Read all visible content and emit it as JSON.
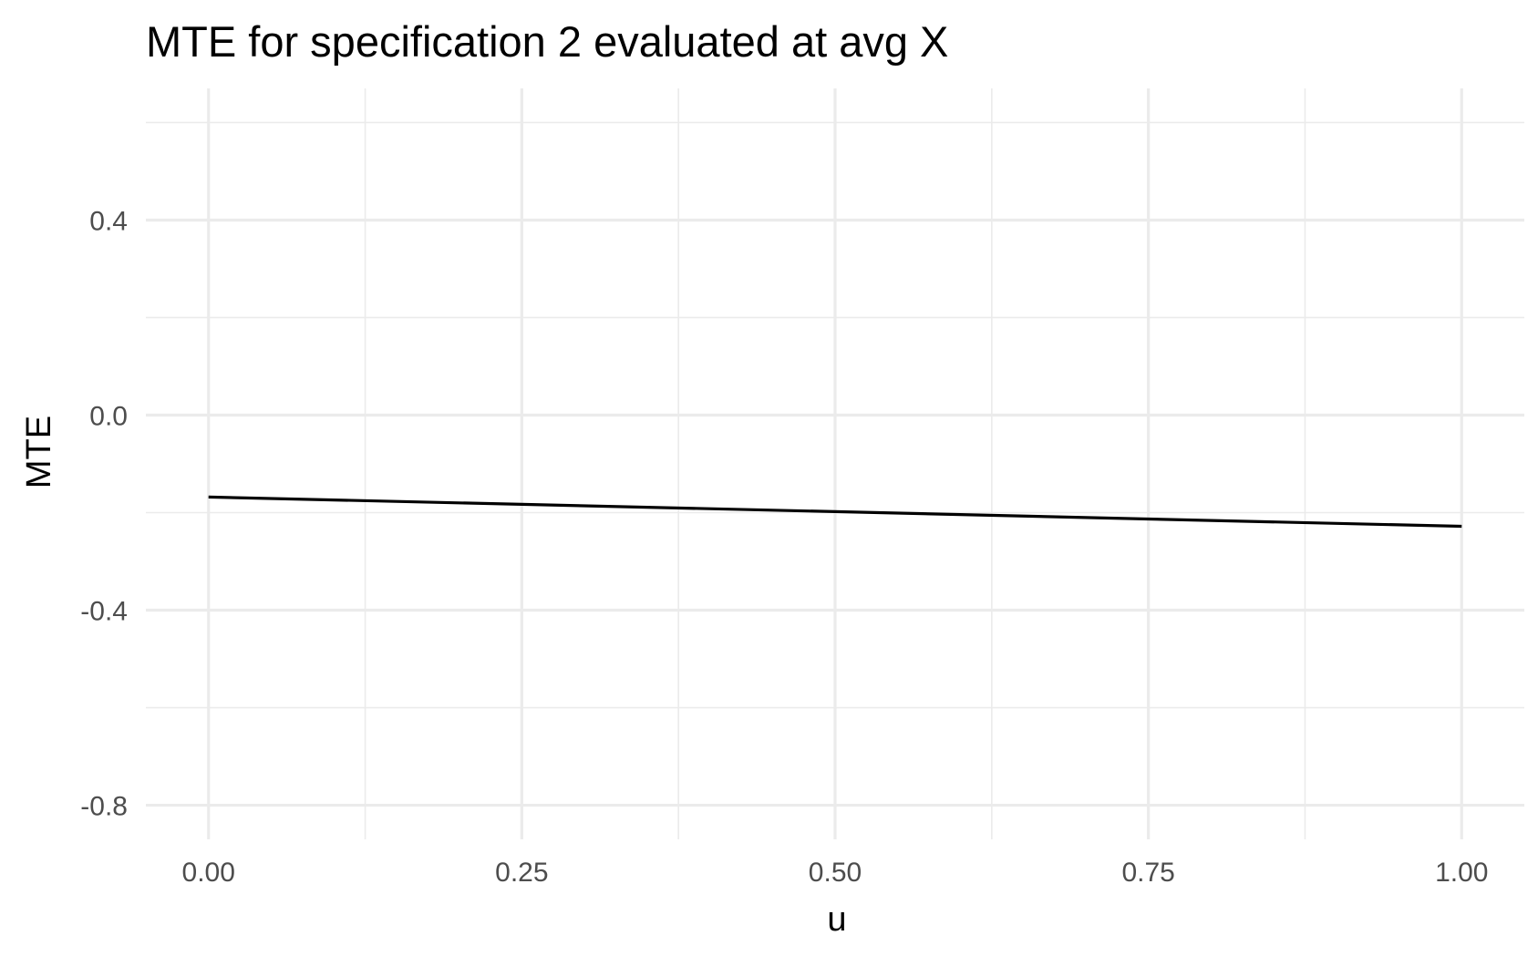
{
  "chart_data": {
    "type": "line",
    "title": "MTE for specification 2 evaluated at avg X",
    "xlabel": "u",
    "ylabel": "MTE",
    "xlim": [
      -0.05,
      1.05
    ],
    "ylim": [
      -0.87,
      0.67
    ],
    "x_ticks": [
      0,
      0.25,
      0.5,
      0.75,
      1
    ],
    "x_tick_labels": [
      "0.00",
      "0.25",
      "0.50",
      "0.75",
      "1.00"
    ],
    "x_minor_ticks": [
      0.125,
      0.375,
      0.625,
      0.875
    ],
    "y_ticks": [
      -0.8,
      -0.4,
      0,
      0.4
    ],
    "y_tick_labels": [
      "-0.8",
      "-0.4",
      "0.0",
      "0.4"
    ],
    "y_minor_ticks": [
      -0.6,
      -0.2,
      0.2,
      0.6
    ],
    "grid": true,
    "legend": "none",
    "series": [
      {
        "color": "#000000",
        "x": [
          0,
          0.25,
          0.5,
          0.75,
          1
        ],
        "y": [
          -0.168,
          -0.183,
          -0.198,
          -0.213,
          -0.228
        ]
      }
    ]
  }
}
